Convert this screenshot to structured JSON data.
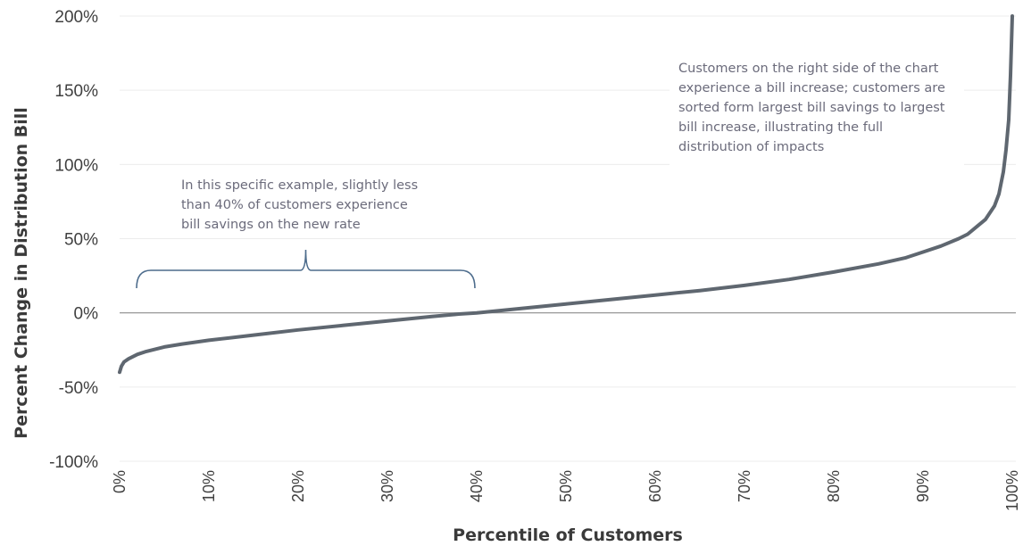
{
  "chart_data": {
    "type": "line",
    "title": "",
    "xlabel": "Percentile of Customers",
    "ylabel": "Percent Change in Distribution Bill",
    "xlim": [
      0,
      100
    ],
    "ylim": [
      -100,
      200
    ],
    "x_ticks": [
      "0%",
      "10%",
      "20%",
      "30%",
      "40%",
      "50%",
      "60%",
      "70%",
      "80%",
      "90%",
      "100%"
    ],
    "y_ticks": [
      "-100%",
      "-50%",
      "0%",
      "50%",
      "100%",
      "150%",
      "200%"
    ],
    "grid": true,
    "series": [
      {
        "name": "",
        "color": "#5f6770",
        "x": [
          0,
          0.2,
          0.5,
          1,
          2,
          3,
          5,
          7,
          10,
          15,
          20,
          25,
          30,
          35,
          38,
          40,
          45,
          50,
          55,
          60,
          65,
          70,
          75,
          80,
          85,
          88,
          90,
          92,
          94,
          95,
          96,
          97,
          98,
          98.5,
          99,
          99.3,
          99.6,
          99.8,
          100
        ],
        "y": [
          -40,
          -36,
          -33,
          -31,
          -28,
          -26,
          -23,
          -21,
          -18.5,
          -15,
          -11.5,
          -8.5,
          -5.5,
          -2.5,
          -0.8,
          0,
          3,
          6,
          9,
          12,
          15,
          18.5,
          22.5,
          27.5,
          33,
          37,
          41,
          45,
          50,
          53,
          58,
          63,
          72,
          80,
          95,
          110,
          130,
          160,
          200
        ]
      }
    ],
    "annotations": [
      {
        "id": "savings-note",
        "lines": [
          "In this specific example, slightly less",
          "than 40% of customers experience",
          "bill savings on the new rate"
        ]
      },
      {
        "id": "increase-note",
        "lines": [
          "Customers on the right side of the chart",
          "experience a bill increase; customers are",
          "sorted form largest bill savings to largest",
          "bill increase, illustrating the full",
          "distribution of impacts"
        ]
      }
    ],
    "brace_range": [
      2,
      40
    ]
  }
}
